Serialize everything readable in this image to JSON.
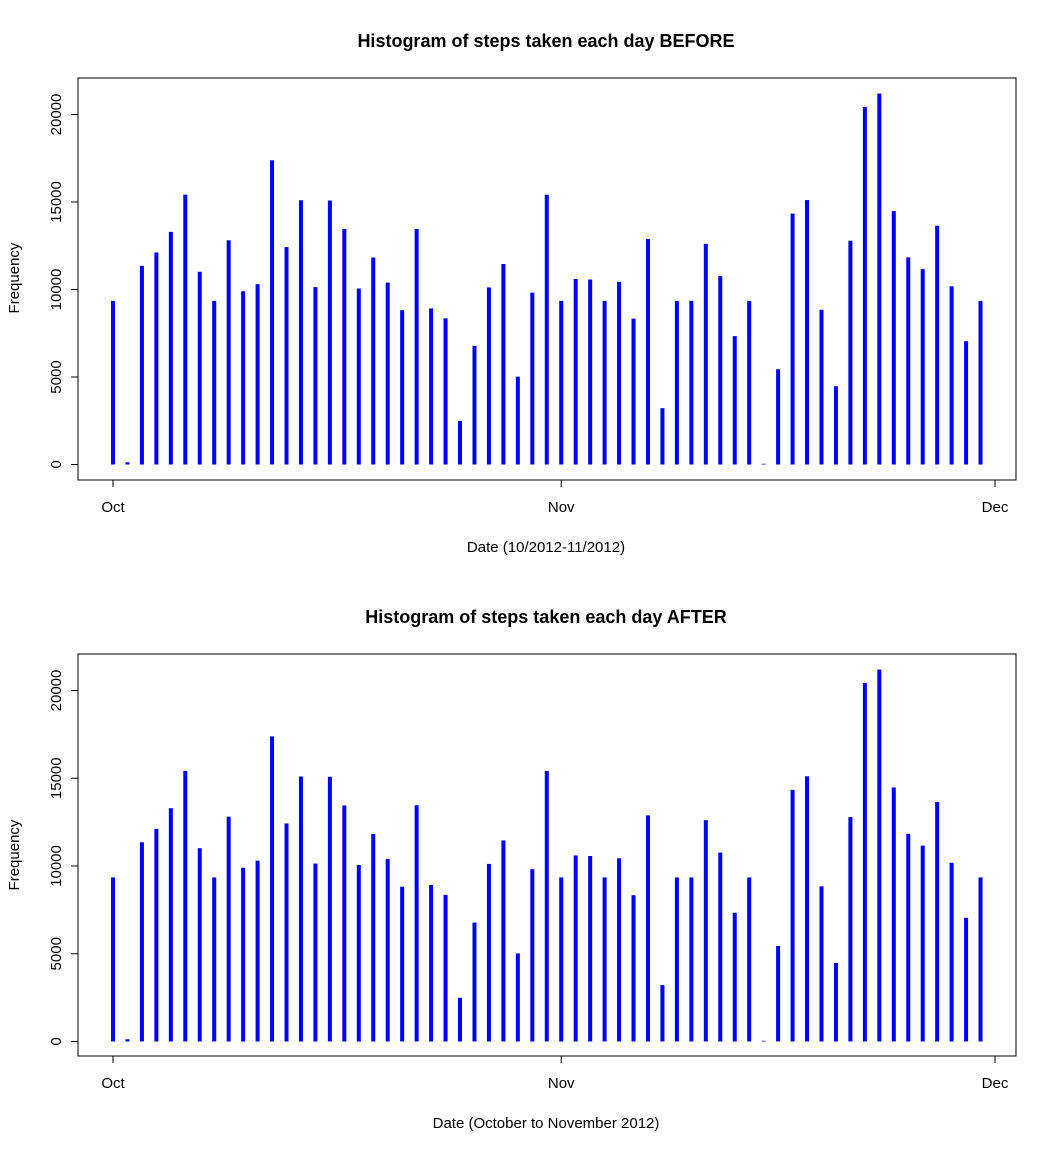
{
  "chart_data": [
    {
      "type": "bar",
      "title": "Histogram of steps taken each day BEFORE",
      "xlabel": "Date (10/2012-11/2012)",
      "ylabel": "Frequency",
      "ylim": [
        0,
        22000
      ],
      "yticks": [
        0,
        5000,
        10000,
        15000,
        20000
      ],
      "ytick_labels": [
        "0",
        "5000",
        "10000",
        "15000",
        "20000"
      ],
      "xlim": [
        "2012-09-29",
        "2012-12-01"
      ],
      "xticks": [
        "2012-10-01",
        "2012-11-01",
        "2012-12-01"
      ],
      "xtick_labels": [
        "Oct",
        "Nov",
        "Dec"
      ],
      "grid": false,
      "color": "#0000ff",
      "x": [
        "2012-10-01",
        "2012-10-02",
        "2012-10-03",
        "2012-10-04",
        "2012-10-05",
        "2012-10-06",
        "2012-10-07",
        "2012-10-08",
        "2012-10-09",
        "2012-10-10",
        "2012-10-11",
        "2012-10-12",
        "2012-10-13",
        "2012-10-14",
        "2012-10-15",
        "2012-10-16",
        "2012-10-17",
        "2012-10-18",
        "2012-10-19",
        "2012-10-20",
        "2012-10-21",
        "2012-10-22",
        "2012-10-23",
        "2012-10-24",
        "2012-10-25",
        "2012-10-26",
        "2012-10-27",
        "2012-10-28",
        "2012-10-29",
        "2012-10-30",
        "2012-10-31",
        "2012-11-01",
        "2012-11-02",
        "2012-11-03",
        "2012-11-04",
        "2012-11-05",
        "2012-11-06",
        "2012-11-07",
        "2012-11-08",
        "2012-11-09",
        "2012-11-10",
        "2012-11-11",
        "2012-11-12",
        "2012-11-13",
        "2012-11-14",
        "2012-11-15",
        "2012-11-16",
        "2012-11-17",
        "2012-11-18",
        "2012-11-19",
        "2012-11-20",
        "2012-11-21",
        "2012-11-22",
        "2012-11-23",
        "2012-11-24",
        "2012-11-25",
        "2012-11-26",
        "2012-11-27",
        "2012-11-28",
        "2012-11-29",
        "2012-11-30"
      ],
      "values": [
        9350,
        126,
        11352,
        12116,
        13294,
        15420,
        11015,
        9350,
        12811,
        9900,
        10304,
        17382,
        12426,
        15098,
        10139,
        15084,
        13452,
        10056,
        11829,
        10395,
        8821,
        13460,
        8918,
        8355,
        2492,
        6778,
        10119,
        11458,
        5018,
        9819,
        15414,
        9350,
        10600,
        10571,
        9350,
        10439,
        8334,
        12883,
        3219,
        9350,
        9350,
        12608,
        10765,
        7336,
        9350,
        41,
        5441,
        14339,
        15110,
        8841,
        4472,
        12787,
        20427,
        21194,
        14478,
        11834,
        11162,
        13646,
        10183,
        7047,
        9350
      ]
    },
    {
      "type": "bar",
      "title": "Histogram of steps taken each day AFTER",
      "xlabel": "Date (October to November 2012)",
      "ylabel": "Frequency",
      "ylim": [
        0,
        22000
      ],
      "yticks": [
        0,
        5000,
        10000,
        15000,
        20000
      ],
      "ytick_labels": [
        "0",
        "5000",
        "10000",
        "15000",
        "20000"
      ],
      "xlim": [
        "2012-09-29",
        "2012-12-01"
      ],
      "xticks": [
        "2012-10-01",
        "2012-11-01",
        "2012-12-01"
      ],
      "xtick_labels": [
        "Oct",
        "Nov",
        "Dec"
      ],
      "grid": false,
      "color": "#0000ff",
      "x": [
        "2012-10-01",
        "2012-10-02",
        "2012-10-03",
        "2012-10-04",
        "2012-10-05",
        "2012-10-06",
        "2012-10-07",
        "2012-10-08",
        "2012-10-09",
        "2012-10-10",
        "2012-10-11",
        "2012-10-12",
        "2012-10-13",
        "2012-10-14",
        "2012-10-15",
        "2012-10-16",
        "2012-10-17",
        "2012-10-18",
        "2012-10-19",
        "2012-10-20",
        "2012-10-21",
        "2012-10-22",
        "2012-10-23",
        "2012-10-24",
        "2012-10-25",
        "2012-10-26",
        "2012-10-27",
        "2012-10-28",
        "2012-10-29",
        "2012-10-30",
        "2012-10-31",
        "2012-11-01",
        "2012-11-02",
        "2012-11-03",
        "2012-11-04",
        "2012-11-05",
        "2012-11-06",
        "2012-11-07",
        "2012-11-08",
        "2012-11-09",
        "2012-11-10",
        "2012-11-11",
        "2012-11-12",
        "2012-11-13",
        "2012-11-14",
        "2012-11-15",
        "2012-11-16",
        "2012-11-17",
        "2012-11-18",
        "2012-11-19",
        "2012-11-20",
        "2012-11-21",
        "2012-11-22",
        "2012-11-23",
        "2012-11-24",
        "2012-11-25",
        "2012-11-26",
        "2012-11-27",
        "2012-11-28",
        "2012-11-29",
        "2012-11-30"
      ],
      "values": [
        9350,
        126,
        11352,
        12116,
        13294,
        15420,
        11015,
        9350,
        12811,
        9900,
        10304,
        17382,
        12426,
        15098,
        10139,
        15084,
        13452,
        10056,
        11829,
        10395,
        8821,
        13460,
        8918,
        8355,
        2492,
        6778,
        10119,
        11458,
        5018,
        9819,
        15414,
        9350,
        10600,
        10571,
        9350,
        10439,
        8334,
        12883,
        3219,
        9350,
        9350,
        12608,
        10765,
        7336,
        9350,
        41,
        5441,
        14339,
        15110,
        8841,
        4472,
        12787,
        20427,
        21194,
        14478,
        11834,
        11162,
        13646,
        10183,
        7047,
        9350
      ]
    }
  ]
}
